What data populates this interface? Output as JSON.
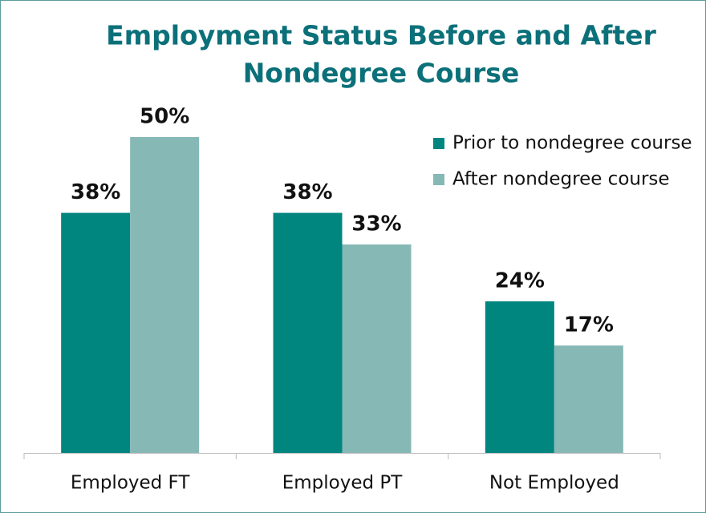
{
  "chart_data": {
    "type": "bar",
    "title": [
      "Employment Status Before and After",
      "Nondegree Course"
    ],
    "categories": [
      "Employed FT",
      "Employed PT",
      "Not Employed"
    ],
    "series": [
      {
        "name": "Prior to nondegree course",
        "color": "#00857f",
        "values": [
          38,
          38,
          24
        ],
        "value_labels": [
          "38%",
          "38%",
          "24%"
        ]
      },
      {
        "name": "After nondegree course",
        "color": "#86b8b6",
        "values": [
          50,
          33,
          17
        ],
        "value_labels": [
          "50%",
          "33%",
          "17%"
        ]
      }
    ],
    "legend": "upper right"
  }
}
